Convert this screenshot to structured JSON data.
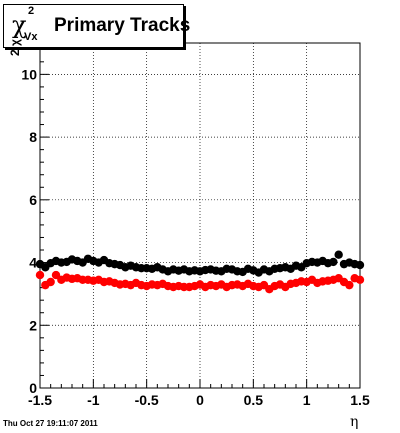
{
  "title": {
    "symbol": "χ",
    "superscript": "2",
    "subscript": "Vx",
    "text": "Primary Tracks"
  },
  "timestamp": "Thu Oct 27 19:11:07 2011",
  "chart_data": {
    "type": "scatter",
    "xlabel": "η",
    "ylabel": "χ",
    "ylabel_superscript": "2",
    "xlim": [
      -1.5,
      1.5
    ],
    "ylim": [
      0,
      11
    ],
    "x_ticks": [
      -1.5,
      -1,
      -0.5,
      0,
      0.5,
      1,
      1.5
    ],
    "x_tick_labels": [
      "-1.5",
      "-1",
      "-0.5",
      "0",
      "0.5",
      "1",
      "1.5"
    ],
    "y_ticks": [
      0,
      2,
      4,
      6,
      8,
      10
    ],
    "y_tick_labels": [
      "0",
      "2",
      "4",
      "6",
      "8",
      "10"
    ],
    "grid": true,
    "colors": {
      "series1": "#000000",
      "series2": "#ff0000"
    },
    "series": [
      {
        "x": [
          -1.5,
          -1.45,
          -1.4,
          -1.35,
          -1.3,
          -1.25,
          -1.2,
          -1.15,
          -1.1,
          -1.05,
          -1.0,
          -0.95,
          -0.9,
          -0.85,
          -0.8,
          -0.75,
          -0.7,
          -0.65,
          -0.6,
          -0.55,
          -0.5,
          -0.45,
          -0.4,
          -0.35,
          -0.3,
          -0.25,
          -0.2,
          -0.15,
          -0.1,
          -0.05,
          0.0,
          0.05,
          0.1,
          0.15,
          0.2,
          0.25,
          0.3,
          0.35,
          0.4,
          0.45,
          0.5,
          0.55,
          0.6,
          0.65,
          0.7,
          0.75,
          0.8,
          0.85,
          0.9,
          0.95,
          1.0,
          1.05,
          1.1,
          1.15,
          1.2,
          1.25,
          1.3,
          1.35,
          1.4,
          1.45,
          1.5
        ],
        "values": [
          3.95,
          3.85,
          3.98,
          4.05,
          4.0,
          4.02,
          4.1,
          4.05,
          4.0,
          4.12,
          4.05,
          4.0,
          4.08,
          3.98,
          3.95,
          3.92,
          3.85,
          3.9,
          3.85,
          3.82,
          3.82,
          3.8,
          3.85,
          3.78,
          3.72,
          3.78,
          3.74,
          3.78,
          3.72,
          3.75,
          3.72,
          3.76,
          3.78,
          3.74,
          3.72,
          3.8,
          3.78,
          3.72,
          3.7,
          3.8,
          3.75,
          3.68,
          3.78,
          3.72,
          3.8,
          3.82,
          3.85,
          3.8,
          3.9,
          3.85,
          3.98,
          4.02,
          4.0,
          4.05,
          3.98,
          4.02,
          4.25,
          3.95,
          4.0,
          3.95,
          3.92
        ]
      },
      {
        "x": [
          -1.5,
          -1.45,
          -1.4,
          -1.35,
          -1.3,
          -1.25,
          -1.2,
          -1.15,
          -1.1,
          -1.05,
          -1.0,
          -0.95,
          -0.9,
          -0.85,
          -0.8,
          -0.75,
          -0.7,
          -0.65,
          -0.6,
          -0.55,
          -0.5,
          -0.45,
          -0.4,
          -0.35,
          -0.3,
          -0.25,
          -0.2,
          -0.15,
          -0.1,
          -0.05,
          0.0,
          0.05,
          0.1,
          0.15,
          0.2,
          0.25,
          0.3,
          0.35,
          0.4,
          0.45,
          0.5,
          0.55,
          0.6,
          0.65,
          0.7,
          0.75,
          0.8,
          0.85,
          0.9,
          0.95,
          1.0,
          1.05,
          1.1,
          1.15,
          1.2,
          1.25,
          1.3,
          1.35,
          1.4,
          1.45,
          1.5
        ],
        "values": [
          3.6,
          3.28,
          3.38,
          3.6,
          3.45,
          3.52,
          3.48,
          3.5,
          3.45,
          3.45,
          3.42,
          3.45,
          3.38,
          3.4,
          3.35,
          3.3,
          3.32,
          3.28,
          3.35,
          3.28,
          3.25,
          3.3,
          3.28,
          3.32,
          3.25,
          3.22,
          3.25,
          3.22,
          3.22,
          3.25,
          3.3,
          3.22,
          3.28,
          3.25,
          3.3,
          3.22,
          3.28,
          3.3,
          3.25,
          3.32,
          3.25,
          3.22,
          3.28,
          3.15,
          3.25,
          3.3,
          3.22,
          3.32,
          3.35,
          3.4,
          3.38,
          3.45,
          3.35,
          3.4,
          3.42,
          3.45,
          3.5,
          3.38,
          3.28,
          3.5,
          3.45
        ]
      }
    ]
  }
}
